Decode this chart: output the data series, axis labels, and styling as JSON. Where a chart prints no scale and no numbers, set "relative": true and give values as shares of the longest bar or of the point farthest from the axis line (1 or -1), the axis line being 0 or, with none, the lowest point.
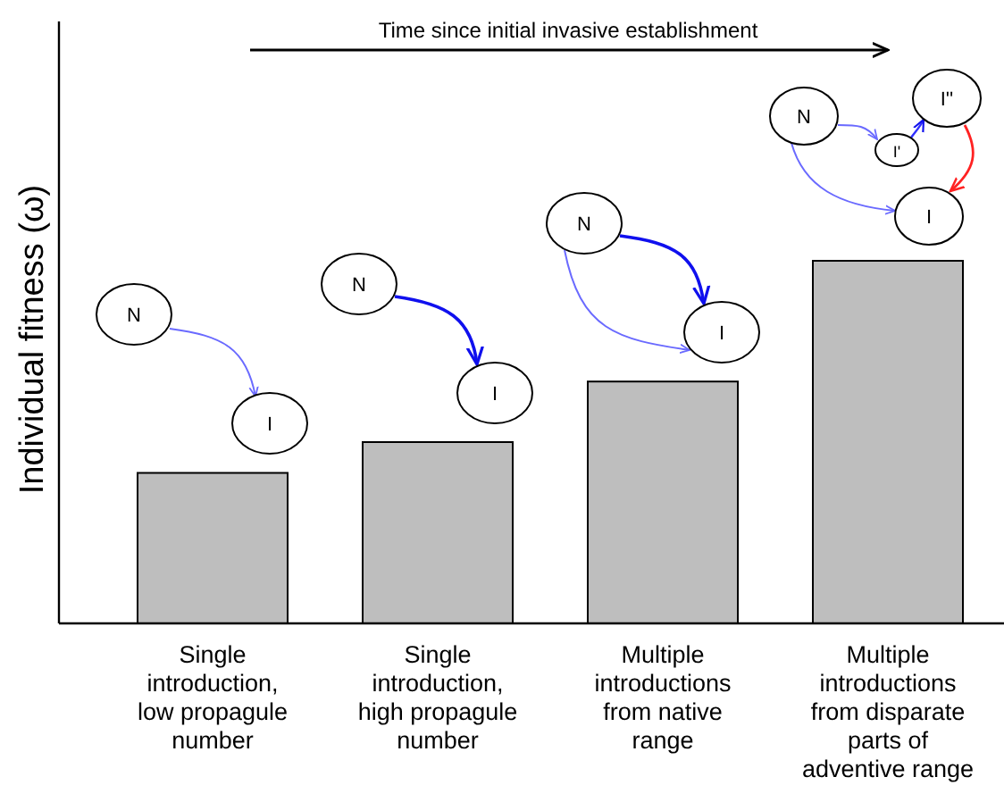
{
  "chart_data": {
    "type": "bar",
    "ylabel": "Individual fitness (ω)",
    "categories": [
      "Single introduction, low propagule number",
      "Single introduction, high propagule number",
      "Multiple introductions from native range",
      "Multiple introductions from disparate parts of adventive range"
    ],
    "values": [
      0.415,
      0.5,
      0.667,
      1
    ],
    "color": "#bebebe",
    "relative": true,
    "annotations": [
      "Time since initial invasive establishment",
      "N",
      "I",
      "N",
      "I",
      "N",
      "I",
      "N",
      "I'",
      "I''",
      "I"
    ]
  }
}
